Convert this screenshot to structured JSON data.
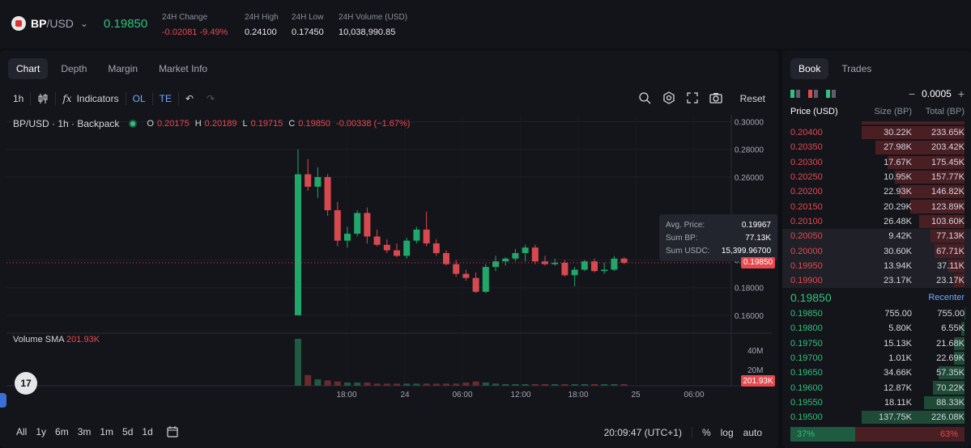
{
  "header": {
    "base": "BP",
    "quote": "/USD",
    "last_price": "0.19850",
    "stats": [
      {
        "label": "24H Change",
        "value": "-0.02081 -9.49%",
        "color": "red"
      },
      {
        "label": "24H High",
        "value": "0.24100",
        "color": "white"
      },
      {
        "label": "24H Low",
        "value": "0.17450",
        "color": "white"
      },
      {
        "label": "24H Volume (USD)",
        "value": "10,038,990.85",
        "color": "white"
      }
    ]
  },
  "chart_tabs": [
    "Chart",
    "Depth",
    "Margin",
    "Market Info"
  ],
  "toolbar": {
    "interval": "1h",
    "indicators": "Indicators",
    "ol": "OL",
    "te": "TE",
    "reset": "Reset"
  },
  "legend": {
    "symbol": "BP/USD · 1h · Backpack",
    "o": "0.20175",
    "h": "0.20189",
    "l": "0.19715",
    "c": "0.19850",
    "change": "-0.00338 (−1.67%)"
  },
  "tooltip": {
    "avg_label": "Avg. Price:",
    "avg_value": "0.19967",
    "sum_bp_label": "Sum BP:",
    "sum_bp_value": "77.13K",
    "sum_usdc_label": "Sum USDC:",
    "sum_usdc_value": "15,399.96700"
  },
  "volume": {
    "label": "Volume SMA",
    "value": "201.93K",
    "tag": "201.93K"
  },
  "price_tag": "0.19850",
  "chart_data": {
    "type": "candlestick",
    "y_ticks": [
      "0.30000",
      "0.28000",
      "0.26000",
      "0.20000",
      "0.18000",
      "0.16000"
    ],
    "y_tick_values": [
      0.3,
      0.28,
      0.26,
      0.2,
      0.18,
      0.16
    ],
    "ylim": [
      0.15,
      0.305
    ],
    "vol_ticks": [
      "40M",
      "20M"
    ],
    "x_ticks": [
      "18:00",
      "24",
      "06:00",
      "12:00",
      "18:00",
      "25",
      "06:00"
    ],
    "candles": [
      {
        "o": 0.16,
        "h": 0.28,
        "l": 0.16,
        "c": 0.262,
        "v": 44
      },
      {
        "o": 0.262,
        "h": 0.273,
        "l": 0.25,
        "c": 0.253,
        "v": 10
      },
      {
        "o": 0.253,
        "h": 0.267,
        "l": 0.245,
        "c": 0.26,
        "v": 6
      },
      {
        "o": 0.26,
        "h": 0.262,
        "l": 0.232,
        "c": 0.236,
        "v": 5
      },
      {
        "o": 0.236,
        "h": 0.242,
        "l": 0.21,
        "c": 0.214,
        "v": 4
      },
      {
        "o": 0.214,
        "h": 0.224,
        "l": 0.209,
        "c": 0.219,
        "v": 3
      },
      {
        "o": 0.219,
        "h": 0.236,
        "l": 0.217,
        "c": 0.234,
        "v": 3
      },
      {
        "o": 0.234,
        "h": 0.238,
        "l": 0.212,
        "c": 0.217,
        "v": 3
      },
      {
        "o": 0.217,
        "h": 0.222,
        "l": 0.21,
        "c": 0.211,
        "v": 2
      },
      {
        "o": 0.211,
        "h": 0.215,
        "l": 0.205,
        "c": 0.207,
        "v": 2
      },
      {
        "o": 0.207,
        "h": 0.212,
        "l": 0.202,
        "c": 0.203,
        "v": 2
      },
      {
        "o": 0.203,
        "h": 0.216,
        "l": 0.201,
        "c": 0.214,
        "v": 2
      },
      {
        "o": 0.214,
        "h": 0.224,
        "l": 0.212,
        "c": 0.222,
        "v": 2
      },
      {
        "o": 0.222,
        "h": 0.235,
        "l": 0.21,
        "c": 0.212,
        "v": 2
      },
      {
        "o": 0.212,
        "h": 0.215,
        "l": 0.203,
        "c": 0.205,
        "v": 2
      },
      {
        "o": 0.205,
        "h": 0.207,
        "l": 0.196,
        "c": 0.197,
        "v": 2
      },
      {
        "o": 0.197,
        "h": 0.2,
        "l": 0.188,
        "c": 0.19,
        "v": 2
      },
      {
        "o": 0.19,
        "h": 0.193,
        "l": 0.185,
        "c": 0.187,
        "v": 3
      },
      {
        "o": 0.187,
        "h": 0.191,
        "l": 0.176,
        "c": 0.177,
        "v": 4
      },
      {
        "o": 0.177,
        "h": 0.197,
        "l": 0.176,
        "c": 0.195,
        "v": 3
      },
      {
        "o": 0.195,
        "h": 0.203,
        "l": 0.192,
        "c": 0.199,
        "v": 2
      },
      {
        "o": 0.199,
        "h": 0.202,
        "l": 0.196,
        "c": 0.201,
        "v": 1
      },
      {
        "o": 0.201,
        "h": 0.208,
        "l": 0.199,
        "c": 0.205,
        "v": 1
      },
      {
        "o": 0.205,
        "h": 0.211,
        "l": 0.199,
        "c": 0.209,
        "v": 1
      },
      {
        "o": 0.209,
        "h": 0.211,
        "l": 0.197,
        "c": 0.199,
        "v": 1
      },
      {
        "o": 0.199,
        "h": 0.203,
        "l": 0.196,
        "c": 0.197,
        "v": 1
      },
      {
        "o": 0.197,
        "h": 0.201,
        "l": 0.196,
        "c": 0.198,
        "v": 1
      },
      {
        "o": 0.198,
        "h": 0.2,
        "l": 0.188,
        "c": 0.189,
        "v": 1
      },
      {
        "o": 0.189,
        "h": 0.195,
        "l": 0.181,
        "c": 0.193,
        "v": 1
      },
      {
        "o": 0.193,
        "h": 0.2,
        "l": 0.192,
        "c": 0.199,
        "v": 1
      },
      {
        "o": 0.199,
        "h": 0.201,
        "l": 0.191,
        "c": 0.192,
        "v": 1
      },
      {
        "o": 0.192,
        "h": 0.198,
        "l": 0.19,
        "c": 0.193,
        "v": 1
      },
      {
        "o": 0.193,
        "h": 0.203,
        "l": 0.192,
        "c": 0.201,
        "v": 1
      },
      {
        "o": 0.201,
        "h": 0.202,
        "l": 0.197,
        "c": 0.198,
        "v": 1
      }
    ]
  },
  "bottom": {
    "ranges": [
      "All",
      "1y",
      "6m",
      "3m",
      "1m",
      "5d",
      "1d"
    ],
    "time": "20:09:47 (UTC+1)",
    "pct": "%",
    "log": "log",
    "auto": "auto"
  },
  "book": {
    "tabs": [
      "Book",
      "Trades"
    ],
    "tick": "0.0005",
    "headers": {
      "price": "Price (USD)",
      "size": "Size (BP)",
      "total": "Total (BP)"
    },
    "asks": [
      {
        "price": "0.20400",
        "size": "30.22K",
        "total": "233.65K",
        "depth": 1.0
      },
      {
        "price": "0.20350",
        "size": "27.98K",
        "total": "203.42K",
        "depth": 0.87
      },
      {
        "price": "0.20300",
        "size": "17.67K",
        "total": "175.45K",
        "depth": 0.75
      },
      {
        "price": "0.20250",
        "size": "10.95K",
        "total": "157.77K",
        "depth": 0.68
      },
      {
        "price": "0.20200",
        "size": "22.93K",
        "total": "146.82K",
        "depth": 0.63
      },
      {
        "price": "0.20150",
        "size": "20.29K",
        "total": "123.89K",
        "depth": 0.53
      },
      {
        "price": "0.20100",
        "size": "26.48K",
        "total": "103.60K",
        "depth": 0.44
      },
      {
        "price": "0.20050",
        "size": "9.42K",
        "total": "77.13K",
        "depth": 0.33
      },
      {
        "price": "0.20000",
        "size": "30.60K",
        "total": "67.71K",
        "depth": 0.29
      },
      {
        "price": "0.19950",
        "size": "13.94K",
        "total": "37.11K",
        "depth": 0.16
      },
      {
        "price": "0.19900",
        "size": "23.17K",
        "total": "23.17K",
        "depth": 0.1
      }
    ],
    "mid_price": "0.19850",
    "recenter": "Recenter",
    "bids": [
      {
        "price": "0.19850",
        "size": "755.00",
        "total": "755.00",
        "depth": 0.004
      },
      {
        "price": "0.19800",
        "size": "5.80K",
        "total": "6.55K",
        "depth": 0.03
      },
      {
        "price": "0.19750",
        "size": "15.13K",
        "total": "21.68K",
        "depth": 0.1
      },
      {
        "price": "0.19700",
        "size": "1.01K",
        "total": "22.69K",
        "depth": 0.1
      },
      {
        "price": "0.19650",
        "size": "34.66K",
        "total": "57.35K",
        "depth": 0.25
      },
      {
        "price": "0.19600",
        "size": "12.87K",
        "total": "70.22K",
        "depth": 0.31
      },
      {
        "price": "0.19550",
        "size": "18.11K",
        "total": "88.33K",
        "depth": 0.39
      },
      {
        "price": "0.19500",
        "size": "137.75K",
        "total": "226.08K",
        "depth": 1.0
      }
    ],
    "buy_ratio": "37%",
    "sell_ratio": "63%",
    "buy_fraction": 0.37
  },
  "colors": {
    "up": "#2fc27a",
    "down": "#e5484d",
    "accent": "#6ea8ff"
  }
}
